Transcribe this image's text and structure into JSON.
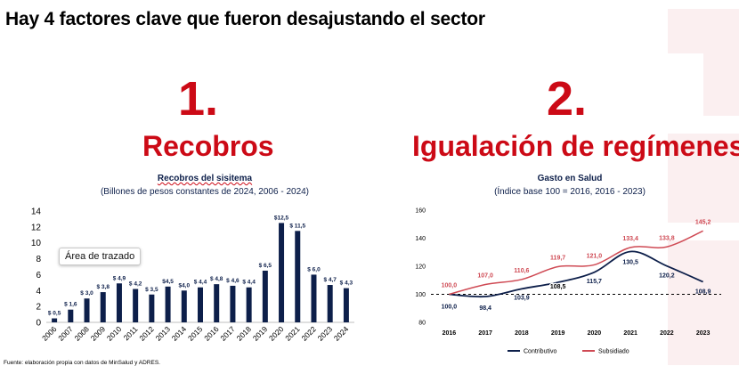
{
  "slide": {
    "title": "Hay 4 factores clave que fueron desajustando el sector",
    "footnote": "Fuente: elaboración propia con datos de MinSalud y ADRES.",
    "tooltip": "Área de trazado"
  },
  "colors": {
    "accent_red": "#cc0a16",
    "navy": "#0d1f4a",
    "line_red": "#cf4a54"
  },
  "sections": [
    {
      "number": "1.",
      "title": "Recobros"
    },
    {
      "number": "2.",
      "title": "Igualación de regímenes"
    }
  ],
  "chart_data": [
    {
      "type": "bar",
      "title": "Recobros del sisitema",
      "subtitle": "(Billones de pesos constantes de 2024, 2006 - 2024)",
      "categories": [
        "2006",
        "2007",
        "2008",
        "2009",
        "2010",
        "2011",
        "2012",
        "2013",
        "2014",
        "2015",
        "2016",
        "2017",
        "2018",
        "2019",
        "2020",
        "2021",
        "2022",
        "2023",
        "2024"
      ],
      "values": [
        0.5,
        1.6,
        3.0,
        3.8,
        4.9,
        4.2,
        3.5,
        4.5,
        4.0,
        4.4,
        4.8,
        4.6,
        4.4,
        6.5,
        12.5,
        11.5,
        6.0,
        4.7,
        4.3
      ],
      "labels": [
        "$ 0,5",
        "$ 1,6",
        "$ 3,0",
        "$ 3,8",
        "$ 4,9",
        "$ 4,2",
        "$ 3,5",
        "$4,5",
        "$4,0",
        "$ 4,4",
        "$ 4,8",
        "$ 4,6",
        "$ 4,4",
        "$ 6,5",
        "$12,5",
        "$ 11,5",
        "$ 6,0",
        "$ 4,7",
        "$ 4,3"
      ],
      "yticks": [
        "0",
        "2",
        "4",
        "6",
        "8",
        "10",
        "12",
        "14"
      ],
      "ylim": [
        0,
        14
      ],
      "xlabel": "",
      "ylabel": ""
    },
    {
      "type": "line",
      "title": "Gasto  en Salud",
      "subtitle": "(Índice base 100 = 2016, 2016 - 2023)",
      "categories": [
        "2016",
        "2017",
        "2018",
        "2019",
        "2020",
        "2021",
        "2022",
        "2023"
      ],
      "series": [
        {
          "name": "Contributivo",
          "color": "#0d1f4a",
          "values": [
            100.0,
            98.4,
            103.9,
            108.5,
            115.7,
            130.5,
            120.2,
            108.9
          ],
          "labels": [
            "100,0",
            "98,4",
            "103,9",
            "108,5",
            "115,7",
            "130,5",
            "120,2",
            "108,9"
          ]
        },
        {
          "name": "Subsidiado",
          "color": "#cf4a54",
          "values": [
            100.0,
            107.0,
            110.6,
            119.7,
            121.0,
            133.4,
            133.8,
            145.2
          ],
          "labels": [
            "100,0",
            "107,0",
            "110,6",
            "119,7",
            "121,0",
            "133,4",
            "133,8",
            "145,2"
          ]
        }
      ],
      "yticks": [
        "80",
        "100",
        "120",
        "140",
        "160"
      ],
      "ylim": [
        80,
        160
      ],
      "reference_line": 100
    }
  ]
}
